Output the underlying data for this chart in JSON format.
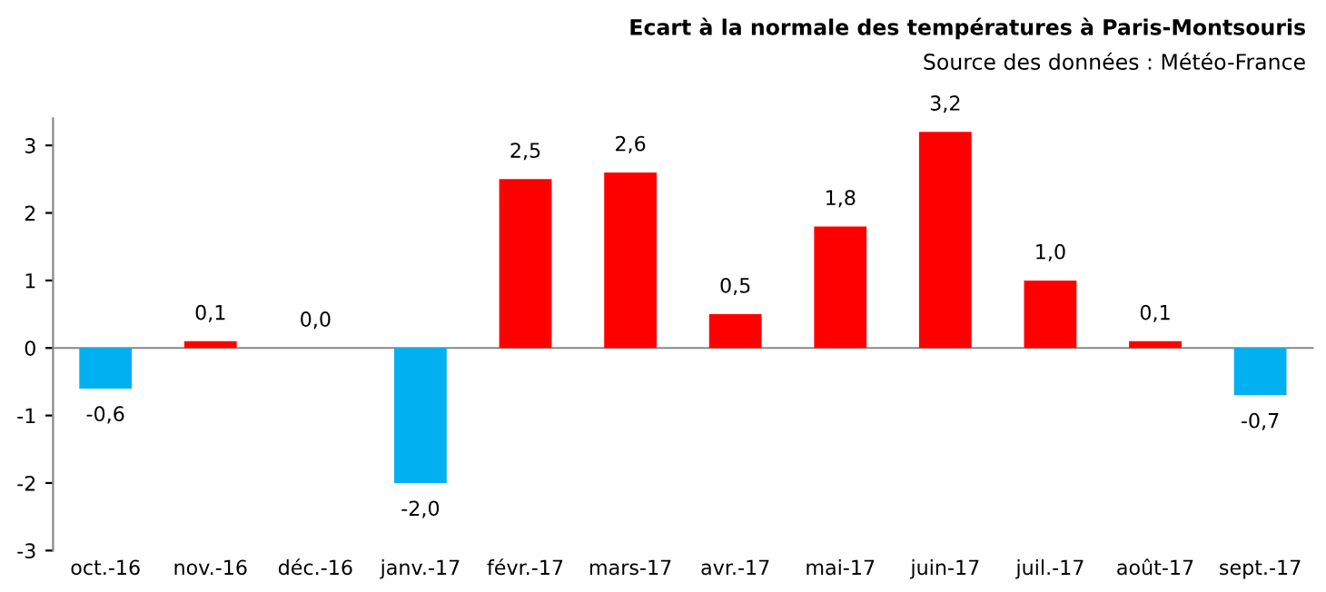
{
  "chart_data": {
    "type": "bar",
    "title": "Ecart à la normale des températures à Paris-Montsouris",
    "subtitle": "Source des données : Météo-France",
    "categories": [
      "oct.-16",
      "nov.-16",
      "déc.-16",
      "janv.-17",
      "févr.-17",
      "mars-17",
      "avr.-17",
      "mai-17",
      "juin-17",
      "juil.-17",
      "août-17",
      "sept.-17"
    ],
    "values": [
      -0.6,
      0.1,
      0.0,
      -2.0,
      2.5,
      2.6,
      0.5,
      1.8,
      3.2,
      1.0,
      0.1,
      -0.7
    ],
    "colors": [
      "#00b0f0",
      "#ff0000",
      "#00b0f0",
      "#00b0f0",
      "#ff0000",
      "#ff0000",
      "#ff0000",
      "#ff0000",
      "#ff0000",
      "#ff0000",
      "#ff0000",
      "#00b0f0"
    ],
    "value_labels": [
      "-0,6",
      "0,1",
      "0,0",
      "-2,0",
      "2,5",
      "2,6",
      "0,5",
      "1,8",
      "3,2",
      "1,0",
      "0,1",
      "-0,7"
    ],
    "ylim": [
      -3,
      3.4
    ],
    "yticks": [
      -3,
      -2,
      -1,
      0,
      1,
      2,
      3
    ],
    "legend": false
  }
}
